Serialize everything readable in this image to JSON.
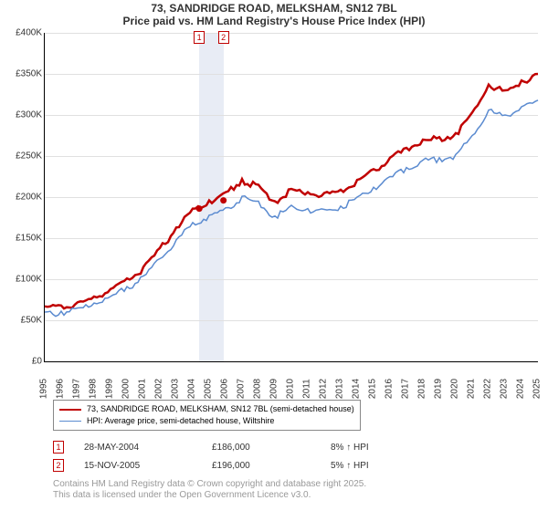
{
  "chart": {
    "type": "line",
    "title_line1": "73, SANDRIDGE ROAD, MELKSHAM, SN12 7BL",
    "title_line2": "Price paid vs. HM Land Registry's House Price Index (HPI)",
    "title_fontsize": 12,
    "background_color": "#ffffff",
    "grid_color": "#e0e0e0",
    "axis_color": "#000000",
    "tick_fontsize": 10,
    "x": {
      "start_year": 1995,
      "end_year": 2025,
      "tick_years": [
        1995,
        1996,
        1997,
        1998,
        1999,
        2000,
        2001,
        2002,
        2003,
        2004,
        2005,
        2006,
        2007,
        2008,
        2009,
        2010,
        2011,
        2012,
        2013,
        2014,
        2015,
        2016,
        2017,
        2018,
        2019,
        2020,
        2021,
        2022,
        2023,
        2024,
        2025
      ]
    },
    "y": {
      "min": 0,
      "max": 400,
      "ticks": [
        0,
        50,
        100,
        150,
        200,
        250,
        300,
        350,
        400
      ],
      "tick_labels": [
        "£0",
        "£50K",
        "£100K",
        "£150K",
        "£200K",
        "£250K",
        "£300K",
        "£350K",
        "£400K"
      ]
    },
    "series": [
      {
        "label": "73, SANDRIDGE ROAD, MELKSHAM, SN12 7BL (semi-detached house)",
        "color": "#c00000",
        "line_width": 2.5,
        "values_by_year": {
          "1995": 67,
          "1996": 68,
          "1997": 72,
          "1998": 79,
          "1999": 88,
          "2000": 101,
          "2001": 115,
          "2002": 138,
          "2003": 163,
          "2004": 186,
          "2005": 196,
          "2006": 206,
          "2007": 222,
          "2008": 215,
          "2009": 195,
          "2010": 210,
          "2011": 206,
          "2012": 205,
          "2013": 209,
          "2014": 221,
          "2015": 234,
          "2016": 248,
          "2017": 260,
          "2018": 270,
          "2019": 273,
          "2020": 278,
          "2021": 303,
          "2022": 337,
          "2023": 330,
          "2024": 342,
          "2025": 350
        }
      },
      {
        "label": "HPI: Average price, semi-detached house, Wiltshire",
        "color": "#5b8bd0",
        "line_width": 1.5,
        "values_by_year": {
          "1995": 60,
          "1996": 61,
          "1997": 65,
          "1998": 71,
          "1999": 79,
          "2000": 91,
          "2001": 104,
          "2002": 125,
          "2003": 148,
          "2004": 169,
          "2005": 178,
          "2006": 187,
          "2007": 201,
          "2008": 195,
          "2009": 177,
          "2010": 190,
          "2011": 186,
          "2012": 185,
          "2013": 189,
          "2014": 200,
          "2015": 212,
          "2016": 225,
          "2017": 236,
          "2018": 245,
          "2019": 248,
          "2020": 252,
          "2021": 275,
          "2022": 306,
          "2023": 300,
          "2024": 310,
          "2025": 318
        }
      }
    ],
    "highlight_band": {
      "start_year": 2004.4,
      "end_year": 2005.9,
      "color": "#e8ecf5"
    },
    "sale_markers": [
      {
        "n": "1",
        "year": 2004.4,
        "date": "28-MAY-2004",
        "price": "£186,000",
        "pct": "8% ↑ HPI",
        "value": 186
      },
      {
        "n": "2",
        "year": 2005.87,
        "date": "15-NOV-2005",
        "price": "£196,000",
        "pct": "5% ↑ HPI",
        "value": 196
      }
    ],
    "marker_box_border": "#c00000",
    "marker_box_text_color": "#c00000",
    "dot_color": "#c00000",
    "dot_radius": 3.5
  },
  "credit": {
    "line1": "Contains HM Land Registry data © Crown copyright and database right 2025.",
    "line2": "This data is licensed under the Open Government Licence v3.0.",
    "color": "#999999",
    "fontsize": 10
  },
  "table_col_widths": {
    "date": 140,
    "price": 130,
    "pct": 120
  }
}
